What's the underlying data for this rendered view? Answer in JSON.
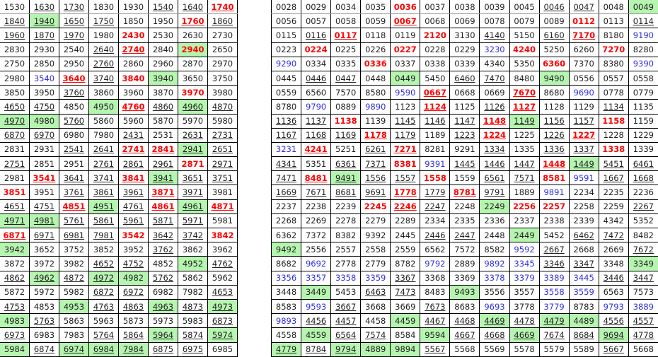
{
  "colors": {
    "highlight_bg": "#b6f5b0",
    "red": "#ff0000",
    "blue": "#3030e0",
    "text": "#222222"
  },
  "style_legend": {
    "u": "underlined",
    "r": "red bold",
    "g": "green background"
  },
  "left_table": [
    [
      "1530",
      "1630:u",
      "1730:u",
      "1830",
      "1930",
      "1540:u",
      "1640:u",
      "1740:ru"
    ],
    [
      "1840:u",
      "1940:ug",
      "1650:u",
      "1750:u",
      "1850",
      "1950",
      "1760:ru",
      "1860:u"
    ],
    [
      "1960:u",
      "1870:u",
      "1970:u",
      "1980",
      "2430:r",
      "2530",
      "2630",
      "2730"
    ],
    [
      "2830",
      "2930",
      "2540",
      "2640:u",
      "2740:ru",
      "2840",
      "2940:rg",
      "2650"
    ],
    [
      "2750",
      "2850",
      "2950",
      "2760:u",
      "2860",
      "2960",
      "2870",
      "2970"
    ],
    [
      "2980",
      "3540:b",
      "3640:ru",
      "3740:u",
      "3840:r",
      "3940:g",
      "3650",
      "3750"
    ],
    [
      "3850",
      "3950",
      "3760:u",
      "3860",
      "3960",
      "3870",
      "3970:r",
      "3980"
    ],
    [
      "4650:u",
      "4750:u",
      "4850",
      "4950:g",
      "4760:ru",
      "4860:u",
      "4960:ug",
      "4870:u"
    ],
    [
      "4970:ug",
      "4980:g",
      "5760:u",
      "5860",
      "5960",
      "5870",
      "5970",
      "5980"
    ],
    [
      "6870:u",
      "6970:u",
      "6980",
      "7980",
      "2431:u",
      "2531",
      "2631:u",
      "2731:u"
    ],
    [
      "2831",
      "2931",
      "2541:u",
      "2641:u",
      "2741:ru",
      "2841:ru",
      "2941:ug",
      "2651:u"
    ],
    [
      "2751:u",
      "2851",
      "2951",
      "2761:u",
      "2861:u",
      "2961:u",
      "2871:r",
      "2971:u"
    ],
    [
      "2981",
      "3541:ru",
      "3641:u",
      "3741:u",
      "3841:ru",
      "3941:ug",
      "3651:u",
      "3751:u"
    ],
    [
      "3851:r",
      "3951",
      "3761:u",
      "3861:u",
      "3961:u",
      "3871:ru",
      "3971:u",
      "3981"
    ],
    [
      "4651:u",
      "4751:u",
      "4851:ru",
      "4951:ug",
      "4761:u",
      "4861:ru",
      "4961:ug",
      "4871:ru"
    ],
    [
      "4971:ug",
      "4981:ug",
      "5761:u",
      "5861:u",
      "5961:u",
      "5871:u",
      "5971:u",
      "5981"
    ],
    [
      "6871:ru",
      "6971:u",
      "6981:u",
      "7981:u",
      "3542:r",
      "3642:u",
      "3742:u",
      "3842:r"
    ],
    [
      "3942:g",
      "3652",
      "3752",
      "3852",
      "3952",
      "3762:u",
      "3862",
      "3962"
    ],
    [
      "3872",
      "3972",
      "3982",
      "4652:u",
      "4752:u",
      "4852",
      "4952:g",
      "4762:u"
    ],
    [
      "4862:u",
      "4962:ug",
      "4872:u",
      "4972:ug",
      "4982:g",
      "5762:u",
      "5862",
      "5962"
    ],
    [
      "5872",
      "5972",
      "5982",
      "6872:u",
      "6972:u",
      "6982",
      "7982",
      "4653:u"
    ],
    [
      "4753:u",
      "4853",
      "4953:g",
      "4763:u",
      "4863:u",
      "4963:ug",
      "4873:u",
      "4973:ug"
    ],
    [
      "4983:g",
      "5763:u",
      "5863",
      "5963",
      "5873",
      "5973",
      "5983",
      "6873:u"
    ],
    [
      "6973:u",
      "6983",
      "7983",
      "5764:u",
      "5864:u",
      "5964:ug",
      "5874:u",
      "5974:ug"
    ],
    [
      "5984:g",
      "6874:u",
      "6974:ug",
      "6984:ug",
      "7984:ug",
      "6875:u",
      "6975:u",
      "6985"
    ]
  ],
  "right_table": [
    [
      "0028",
      "0029",
      "0034",
      "0035",
      "0036:r",
      "0037",
      "0038",
      "0039",
      "0045",
      "0046:u",
      "0047:u",
      "0048",
      "0049:g"
    ],
    [
      "0056",
      "0057",
      "0058",
      "0059",
      "0067:ru",
      "0068",
      "0069",
      "0078",
      "0079",
      "0089",
      "0112:r",
      "0113",
      "0114:u"
    ],
    [
      "0115",
      "0116:u",
      "0117:ru",
      "0118",
      "0119",
      "2120:r",
      "3130",
      "4140:u",
      "5150",
      "6160:u",
      "7170:ru",
      "8180",
      "9190:b"
    ],
    [
      "0223",
      "0224:r",
      "0225",
      "0226",
      "0227:r",
      "0228",
      "0229",
      "3230:b",
      "4240:r",
      "5250",
      "6260",
      "7270:r",
      "8280"
    ],
    [
      "9290:b",
      "0334",
      "0335",
      "0336:r",
      "0337",
      "0338",
      "0339",
      "4340",
      "5350",
      "6360:r",
      "7370",
      "8380",
      "9390:b"
    ],
    [
      "0445",
      "0446:u",
      "0447:u",
      "0448",
      "0449:g",
      "5450",
      "6460:u",
      "7470:u",
      "8480",
      "9490:g",
      "0556",
      "0557",
      "0558"
    ],
    [
      "0559",
      "6560",
      "7570",
      "8580",
      "9590:b",
      "0667:ru",
      "0668",
      "0669",
      "7670:ru",
      "8680",
      "9690:b",
      "0778",
      "0779"
    ],
    [
      "8780",
      "9790:b",
      "0889",
      "9890:b",
      "1123",
      "1124:ru",
      "1125",
      "1126:u",
      "1127:ru",
      "1128",
      "1129",
      "1134:u",
      "1135"
    ],
    [
      "1136:u",
      "1137:u",
      "1138:r",
      "1139",
      "1145:u",
      "1146:u",
      "1147:u",
      "1148:ru",
      "1149:ug",
      "1156:u",
      "1157:u",
      "1158:r",
      "1159"
    ],
    [
      "1167:u",
      "1168:u",
      "1169:u",
      "1178:ru",
      "1179:u",
      "1189",
      "1223:u",
      "1224:ru",
      "1225",
      "1226:u",
      "1227:ru",
      "1228",
      "1229"
    ],
    [
      "3231:b",
      "4241:ru",
      "5251",
      "6261:u",
      "7271:ru",
      "8281",
      "9291",
      "1334:u",
      "1335",
      "1336:u",
      "1337:u",
      "1338:r",
      "1339"
    ],
    [
      "4341:u",
      "5351",
      "6361:u",
      "7371:u",
      "8381:r",
      "9391:b",
      "1445:u",
      "1446:u",
      "1447:u",
      "1448:ru",
      "1449:ug",
      "5451:u",
      "6461:u"
    ],
    [
      "7471:u",
      "8481:ru",
      "9491:ug",
      "1556:u",
      "1557:u",
      "1558:r",
      "1559",
      "6561:u",
      "7571:u",
      "8581:r",
      "9591:b",
      "1667:u",
      "1668:u"
    ],
    [
      "1669:u",
      "7671:u",
      "8681:u",
      "9691:u",
      "1778:ru",
      "1779:u",
      "8781:ru",
      "9791:u",
      "1889",
      "9891:b",
      "2234",
      "2235",
      "2236"
    ],
    [
      "2237",
      "2238",
      "2239",
      "2245:r",
      "2246:ru",
      "2247:u",
      "2248",
      "2249:g",
      "2256:r",
      "2257:r",
      "2258",
      "2259",
      "2267:u"
    ],
    [
      "2268",
      "2269",
      "2278",
      "2279",
      "2289",
      "2334",
      "2335",
      "2336",
      "2337",
      "2338",
      "2339",
      "4342",
      "5352"
    ],
    [
      "6362",
      "7372",
      "8382",
      "9392",
      "2445",
      "2446:u",
      "2447:u",
      "2448",
      "2449:g",
      "5452",
      "6462:u",
      "7472:u",
      "8482"
    ],
    [
      "9492:g",
      "2556",
      "2557",
      "2558",
      "2559",
      "6562",
      "7572",
      "8582",
      "9592:b",
      "2667:u",
      "2668",
      "2669",
      "7672:u"
    ],
    [
      "8682",
      "9692:b",
      "2778",
      "2779",
      "8782",
      "9792:b",
      "2889",
      "9892:b",
      "3345:b",
      "3346:u",
      "3347:u",
      "3348",
      "3349:g"
    ],
    [
      "3356:b",
      "3357:b",
      "3358:b",
      "3359:b",
      "3367:u",
      "3368",
      "3369",
      "3378:b",
      "3379:b",
      "3389:b",
      "3445:b",
      "3446:u",
      "3447:u"
    ],
    [
      "3448",
      "3449:g",
      "5453",
      "6463:u",
      "7473:u",
      "8483",
      "9493:g",
      "3556",
      "3557",
      "3558:b",
      "3559:b",
      "6563",
      "7573"
    ],
    [
      "8583",
      "9593:b",
      "3667:u",
      "3668",
      "3669",
      "7673:u",
      "8683",
      "9693:b",
      "3778",
      "3779:b",
      "8783",
      "9793:b",
      "3889:b"
    ],
    [
      "9893:b",
      "4456:u",
      "4457:u",
      "4458",
      "4459:g",
      "4467:u",
      "4468:u",
      "4469:ug",
      "4478:u",
      "4479:ug",
      "4489:g",
      "4556:u",
      "4557:u"
    ],
    [
      "4558",
      "4559:g",
      "6564:u",
      "7574:u",
      "8584",
      "9594:g",
      "4667:u",
      "4668:u",
      "4669:ug",
      "7674:u",
      "8684:u",
      "9694:ug",
      "4778:u"
    ],
    [
      "4779:ug",
      "8784:u",
      "9794:ug",
      "4889:g",
      "9894:g",
      "5567:u",
      "5568",
      "5569",
      "5578",
      "5579",
      "5589",
      "5667:u",
      "5668"
    ]
  ]
}
